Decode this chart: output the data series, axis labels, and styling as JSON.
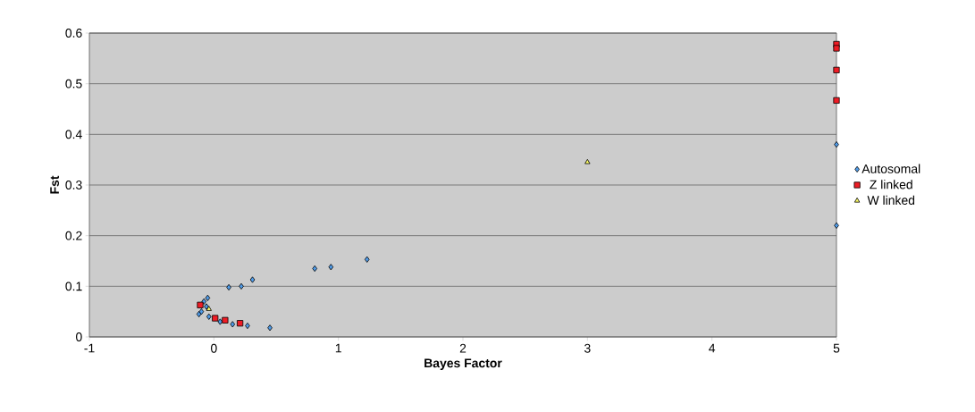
{
  "chart_data": {
    "type": "scatter",
    "xlabel": "Bayes Factor",
    "ylabel": "Fst",
    "xlim": [
      -1,
      5
    ],
    "xticks": [
      -1,
      0,
      1,
      2,
      3,
      4,
      5
    ],
    "ylim": [
      0,
      0.6
    ],
    "yticks": [
      0,
      0.1,
      0.2,
      0.3,
      0.4,
      0.5,
      0.6
    ],
    "grid": "y",
    "legend": "right",
    "series": [
      {
        "name": "Autosomal",
        "color": "#4f9be8",
        "marker": "diamond",
        "x": [
          0.12,
          0.22,
          0.31,
          0.81,
          0.94,
          1.23,
          0.45,
          5,
          5,
          -0.05,
          -0.08,
          -0.12,
          -0.1,
          -0.04,
          0.05,
          0.15,
          0.27,
          -0.06
        ],
        "values": [
          0.098,
          0.1,
          0.113,
          0.135,
          0.138,
          0.153,
          0.018,
          0.38,
          0.22,
          0.077,
          0.07,
          0.045,
          0.05,
          0.04,
          0.03,
          0.025,
          0.022,
          0.06
        ]
      },
      {
        "name": "Z linked",
        "color": "#ee1c25",
        "marker": "square",
        "x": [
          -0.11,
          0.01,
          0.09,
          0.21,
          5,
          5,
          5,
          5
        ],
        "values": [
          0.063,
          0.037,
          0.033,
          0.027,
          0.578,
          0.57,
          0.527,
          0.467
        ]
      },
      {
        "name": "W linked",
        "color": "#ffff66",
        "marker": "triangle",
        "x": [
          3,
          -0.04
        ],
        "values": [
          0.345,
          0.055
        ]
      }
    ]
  }
}
